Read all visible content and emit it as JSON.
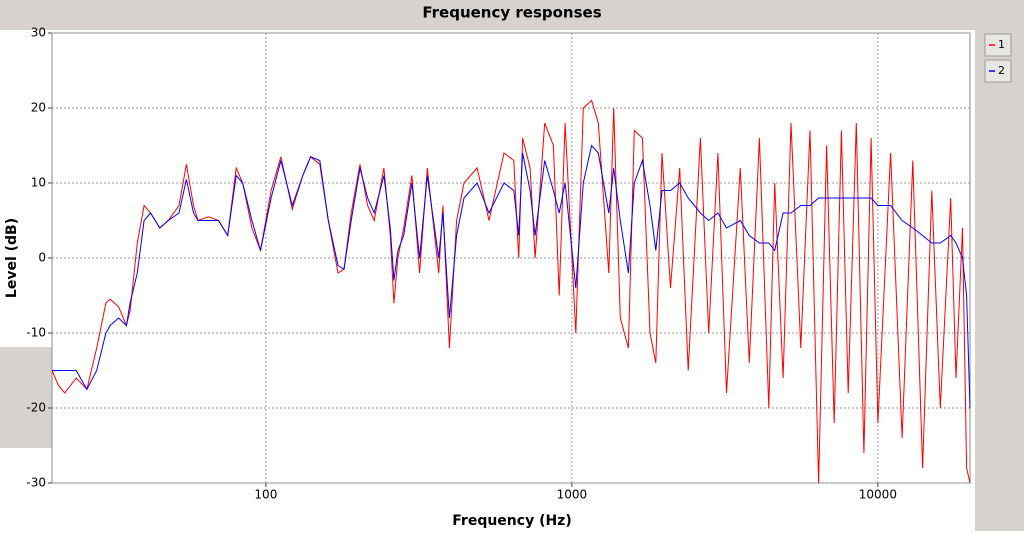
{
  "chart_data": {
    "type": "line",
    "title": "Frequency responses",
    "x_label": "Frequency (Hz)",
    "y_label": "Level (dB)",
    "xscale": "log",
    "grid": true,
    "legend": "upper right",
    "xlim": [
      20,
      20000
    ],
    "ylim": [
      -30,
      30
    ],
    "xticks": [
      100,
      1000,
      10000
    ],
    "yticks": [
      -30,
      -20,
      -10,
      0,
      10,
      20,
      30
    ],
    "x": [
      20,
      21,
      22,
      24,
      26,
      28,
      30,
      31,
      33,
      35,
      36,
      38,
      40,
      42,
      45,
      48,
      52,
      55,
      58,
      60,
      65,
      70,
      75,
      80,
      84,
      90,
      96,
      104,
      112,
      122,
      132,
      140,
      150,
      160,
      172,
      180,
      190,
      203,
      215,
      226,
      243,
      255,
      262,
      270,
      282,
      300,
      318,
      337,
      367,
      379,
      398,
      420,
      444,
      490,
      536,
      600,
      646,
      670,
      690,
      730,
      758,
      815,
      870,
      909,
      950,
      1030,
      1090,
      1160,
      1220,
      1320,
      1370,
      1440,
      1530,
      1600,
      1700,
      1800,
      1880,
      1970,
      2100,
      2250,
      2400,
      2630,
      2800,
      3000,
      3200,
      3550,
      3800,
      4100,
      4400,
      4600,
      4900,
      5200,
      5600,
      6000,
      6400,
      6800,
      7200,
      7600,
      8000,
      8500,
      9000,
      9500,
      10000,
      11000,
      12000,
      13000,
      14000,
      15000,
      16000,
      17300,
      18000,
      18900,
      19500,
      20000
    ],
    "series": [
      {
        "name": "1",
        "color": "#ff0000",
        "values": [
          -15,
          -17,
          -18,
          -16,
          -17.5,
          -12,
          -6,
          -5.5,
          -6.5,
          -9,
          -7,
          2,
          7,
          6,
          4,
          5,
          7,
          12.5,
          7,
          5,
          5.5,
          5,
          3,
          12,
          10,
          4,
          1,
          9,
          13.5,
          6.5,
          11,
          13.5,
          12.5,
          5,
          -2,
          -1.5,
          6,
          12.5,
          7,
          5,
          12,
          3,
          -6,
          0,
          4,
          11,
          -2,
          12,
          -2,
          7,
          -12,
          5,
          10,
          12,
          5,
          14,
          13,
          0,
          16,
          12,
          0,
          18,
          15,
          -5,
          18,
          -10,
          20,
          21,
          18,
          -2,
          20,
          -8,
          -12,
          17,
          16,
          -10,
          -14,
          14,
          -4,
          12,
          -15,
          16,
          -10,
          14,
          -18,
          12,
          -14,
          16,
          -20,
          10,
          -16,
          18,
          -12,
          17,
          -30,
          15,
          -22,
          17,
          -18,
          18,
          -26,
          16,
          -22,
          14,
          -24,
          13,
          -28,
          9,
          -20,
          8,
          -16,
          4,
          -28,
          -30
        ]
      },
      {
        "name": "2",
        "color": "#0000ff",
        "values": [
          -15,
          -15,
          -15,
          -15,
          -17.5,
          -15,
          -10,
          -9,
          -8,
          -9,
          -6,
          -2,
          5,
          6,
          4,
          5,
          6,
          10.5,
          6,
          5,
          5,
          5,
          3,
          11,
          10,
          5,
          1,
          8,
          13,
          7,
          11,
          13.5,
          13,
          5,
          -1,
          -1.5,
          5,
          12,
          8,
          6,
          11,
          4,
          -3,
          1,
          3,
          10,
          0,
          11,
          0,
          6,
          -8,
          3,
          8,
          10,
          6,
          10,
          9,
          3,
          14,
          9,
          3,
          13,
          9,
          6,
          10,
          -4,
          10,
          15,
          14,
          6,
          12,
          5,
          -2,
          10,
          13,
          7,
          1,
          9,
          9,
          10,
          8,
          6,
          5,
          6,
          4,
          5,
          3,
          2,
          2,
          1,
          6,
          6,
          7,
          7,
          8,
          8,
          8,
          8,
          8,
          8,
          8,
          8,
          7,
          7,
          5,
          4,
          3,
          2,
          2,
          3,
          2,
          0,
          -5,
          -20
        ]
      }
    ]
  }
}
